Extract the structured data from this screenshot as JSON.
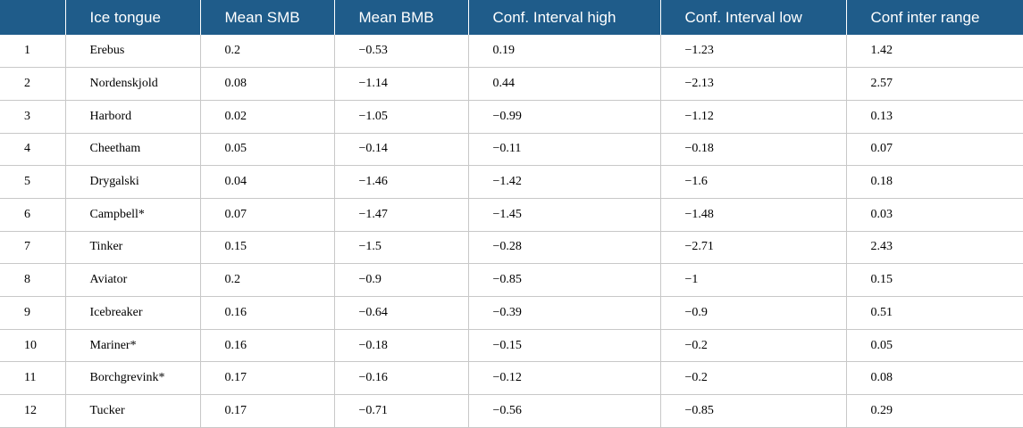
{
  "table": {
    "headers": [
      "",
      "Ice tongue",
      "Mean SMB",
      "Mean BMB",
      "Conf. Interval high",
      "Conf. Interval low",
      "Conf inter range"
    ],
    "rows": [
      [
        "1",
        "Erebus",
        "0.2",
        "−0.53",
        "0.19",
        "−1.23",
        "1.42"
      ],
      [
        "2",
        "Nordenskjold",
        "0.08",
        "−1.14",
        "0.44",
        "−2.13",
        "2.57"
      ],
      [
        "3",
        "Harbord",
        "0.02",
        "−1.05",
        "−0.99",
        "−1.12",
        "0.13"
      ],
      [
        "4",
        "Cheetham",
        "0.05",
        "−0.14",
        "−0.11",
        "−0.18",
        "0.07"
      ],
      [
        "5",
        "Drygalski",
        "0.04",
        "−1.46",
        "−1.42",
        "−1.6",
        "0.18"
      ],
      [
        "6",
        "Campbell*",
        "0.07",
        "−1.47",
        "−1.45",
        "−1.48",
        "0.03"
      ],
      [
        "7",
        "Tinker",
        "0.15",
        "−1.5",
        "−0.28",
        "−2.71",
        "2.43"
      ],
      [
        "8",
        "Aviator",
        "0.2",
        "−0.9",
        "−0.85",
        "−1",
        "0.15"
      ],
      [
        "9",
        "Icebreaker",
        "0.16",
        "−0.64",
        "−0.39",
        "−0.9",
        "0.51"
      ],
      [
        "10",
        "Mariner*",
        "0.16",
        "−0.18",
        "−0.15",
        "−0.2",
        "0.05"
      ],
      [
        "11",
        "Borchgrevink*",
        "0.17",
        "−0.16",
        "−0.12",
        "−0.2",
        "0.08"
      ],
      [
        "12",
        "Tucker",
        "0.17",
        "−0.71",
        "−0.56",
        "−0.85",
        "0.29"
      ]
    ]
  }
}
